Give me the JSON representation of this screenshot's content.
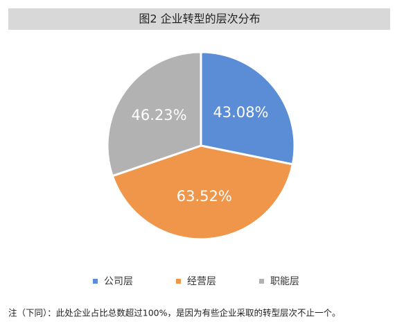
{
  "chart_data": {
    "type": "pie",
    "title": "图2  企业转型的层次分布",
    "categories": [
      "公司层",
      "经营层",
      "职能层"
    ],
    "values": [
      43.08,
      63.52,
      46.23
    ],
    "value_labels": [
      "43.08%",
      "63.52%",
      "46.23%"
    ],
    "colors": [
      "#5a8dd5",
      "#f0964a",
      "#b2b2b2"
    ],
    "legend": "bottom",
    "note": "注（下同）：此处企业占比总数超过100%，是因为有些企业采取的转型层次不止一个。"
  }
}
